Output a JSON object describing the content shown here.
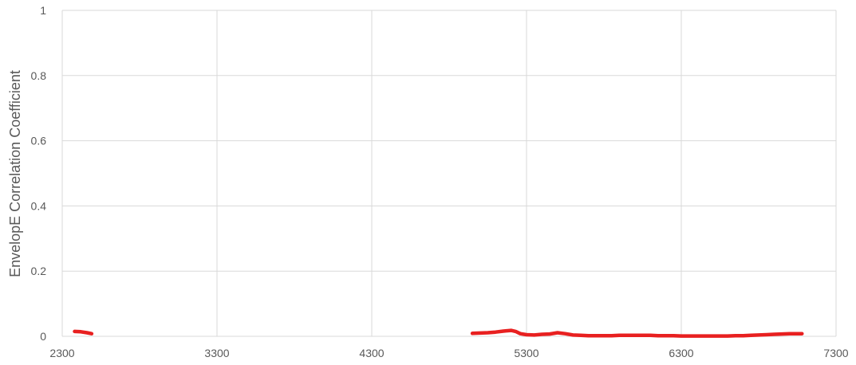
{
  "chart_data": {
    "type": "line",
    "title": "",
    "xlabel": "",
    "ylabel": "EnvelopE Correlation Coefficient",
    "xlim": [
      2300,
      7300
    ],
    "ylim": [
      0,
      1
    ],
    "x_ticks": [
      "2300",
      "3300",
      "4300",
      "5300",
      "6300",
      "7300"
    ],
    "y_ticks": [
      "0",
      "0.2",
      "0.4",
      "0.6",
      "0.8",
      "1"
    ],
    "grid": true,
    "legend": "none",
    "series": [
      {
        "color": "#e82020",
        "segments": [
          {
            "x": [
              2380,
              2420,
              2460,
              2490
            ],
            "y": [
              0.015,
              0.014,
              0.011,
              0.008
            ]
          },
          {
            "x": [
              4950,
              5000,
              5050,
              5100,
              5150,
              5200,
              5230,
              5260,
              5300,
              5350,
              5400,
              5450,
              5500,
              5550,
              5600,
              5650,
              5700,
              5750,
              5800,
              5850,
              5900,
              5950,
              6000,
              6050,
              6100,
              6150,
              6200,
              6250,
              6300,
              6350,
              6400,
              6450,
              6500,
              6550,
              6600,
              6650,
              6700,
              6750,
              6800,
              6850,
              6900,
              6950,
              7000,
              7050,
              7080
            ],
            "y": [
              0.009,
              0.01,
              0.011,
              0.013,
              0.016,
              0.018,
              0.015,
              0.008,
              0.005,
              0.004,
              0.006,
              0.007,
              0.011,
              0.008,
              0.004,
              0.003,
              0.002,
              0.002,
              0.002,
              0.002,
              0.003,
              0.003,
              0.003,
              0.003,
              0.003,
              0.002,
              0.002,
              0.002,
              0.001,
              0.001,
              0.001,
              0.001,
              0.001,
              0.001,
              0.001,
              0.002,
              0.002,
              0.003,
              0.004,
              0.005,
              0.006,
              0.007,
              0.008,
              0.008,
              0.008
            ]
          }
        ]
      }
    ]
  }
}
